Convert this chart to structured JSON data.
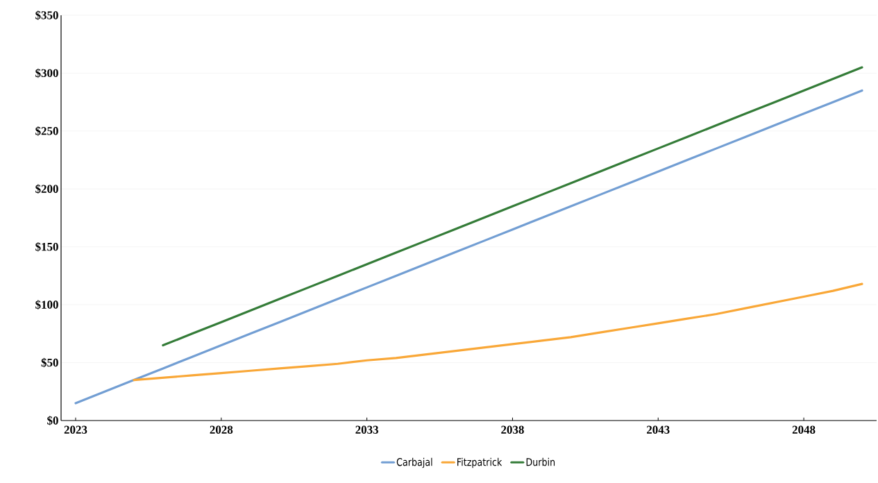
{
  "chart_data": {
    "type": "line",
    "xlim": [
      2022.5,
      2050.5
    ],
    "xticks": [
      2023,
      2028,
      2033,
      2038,
      2043,
      2048
    ],
    "ylim": [
      0,
      350
    ],
    "yticks": [
      {
        "value": 0,
        "label": "$0"
      },
      {
        "value": 50,
        "label": "$50"
      },
      {
        "value": 100,
        "label": "$100"
      },
      {
        "value": 150,
        "label": "$150"
      },
      {
        "value": 200,
        "label": "$200"
      },
      {
        "value": 250,
        "label": "$250"
      },
      {
        "value": 300,
        "label": "$300"
      },
      {
        "value": 350,
        "label": "$350"
      }
    ],
    "grid": "y",
    "legend": "bottom",
    "marker": "none",
    "line_style": "solid",
    "series": [
      {
        "name": "Carbajal",
        "color": "#729ed3",
        "x": [
          2023,
          2024,
          2025,
          2026,
          2027,
          2028,
          2029,
          2030,
          2031,
          2032,
          2033,
          2034,
          2035,
          2036,
          2037,
          2038,
          2039,
          2040,
          2041,
          2042,
          2043,
          2044,
          2045,
          2046,
          2047,
          2048,
          2049,
          2050
        ],
        "values": [
          15,
          25,
          35,
          45,
          55,
          65,
          75,
          85,
          95,
          105,
          115,
          125,
          135,
          145,
          155,
          165,
          175,
          185,
          195,
          205,
          215,
          225,
          235,
          245,
          255,
          265,
          275,
          285
        ]
      },
      {
        "name": "Fitzpatrick",
        "color": "#f9a737",
        "x": [
          2025,
          2026,
          2027,
          2028,
          2029,
          2030,
          2031,
          2032,
          2033,
          2034,
          2035,
          2036,
          2037,
          2038,
          2039,
          2040,
          2041,
          2042,
          2043,
          2044,
          2045,
          2046,
          2047,
          2048,
          2049,
          2050
        ],
        "values": [
          35,
          37,
          39,
          41,
          43,
          45,
          47,
          49,
          52,
          54,
          57,
          60,
          63,
          66,
          69,
          72,
          76,
          80,
          84,
          88,
          92,
          97,
          102,
          107,
          112,
          118
        ]
      },
      {
        "name": "Durbin",
        "color": "#347c38",
        "x": [
          2026,
          2027,
          2028,
          2029,
          2030,
          2031,
          2032,
          2033,
          2034,
          2035,
          2036,
          2037,
          2038,
          2039,
          2040,
          2041,
          2042,
          2043,
          2044,
          2045,
          2046,
          2047,
          2048,
          2049,
          2050
        ],
        "values": [
          65,
          75,
          85,
          95,
          105,
          115,
          125,
          135,
          145,
          155,
          165,
          175,
          185,
          195,
          205,
          215,
          225,
          235,
          245,
          255,
          265,
          275,
          285,
          295,
          305
        ]
      }
    ]
  }
}
